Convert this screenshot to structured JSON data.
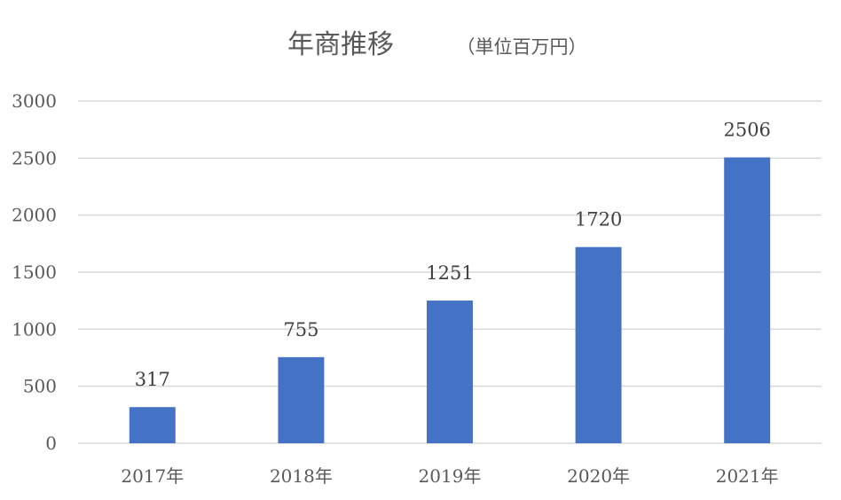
{
  "chart_data": {
    "type": "bar",
    "title": "年商推移",
    "subtitle": "（単位百万円）",
    "categories": [
      "2017年",
      "2018年",
      "2019年",
      "2020年",
      "2021年"
    ],
    "values": [
      317,
      755,
      1251,
      1720,
      2506
    ],
    "data_labels": [
      "317",
      "755",
      "1251",
      "1720",
      "2506"
    ],
    "y_ticks": [
      "0",
      "500",
      "1000",
      "1500",
      "2000",
      "2500",
      "3000"
    ],
    "ylim": [
      0,
      3000
    ],
    "grid": true,
    "legend": "none",
    "bar_color": "#4472C4"
  }
}
